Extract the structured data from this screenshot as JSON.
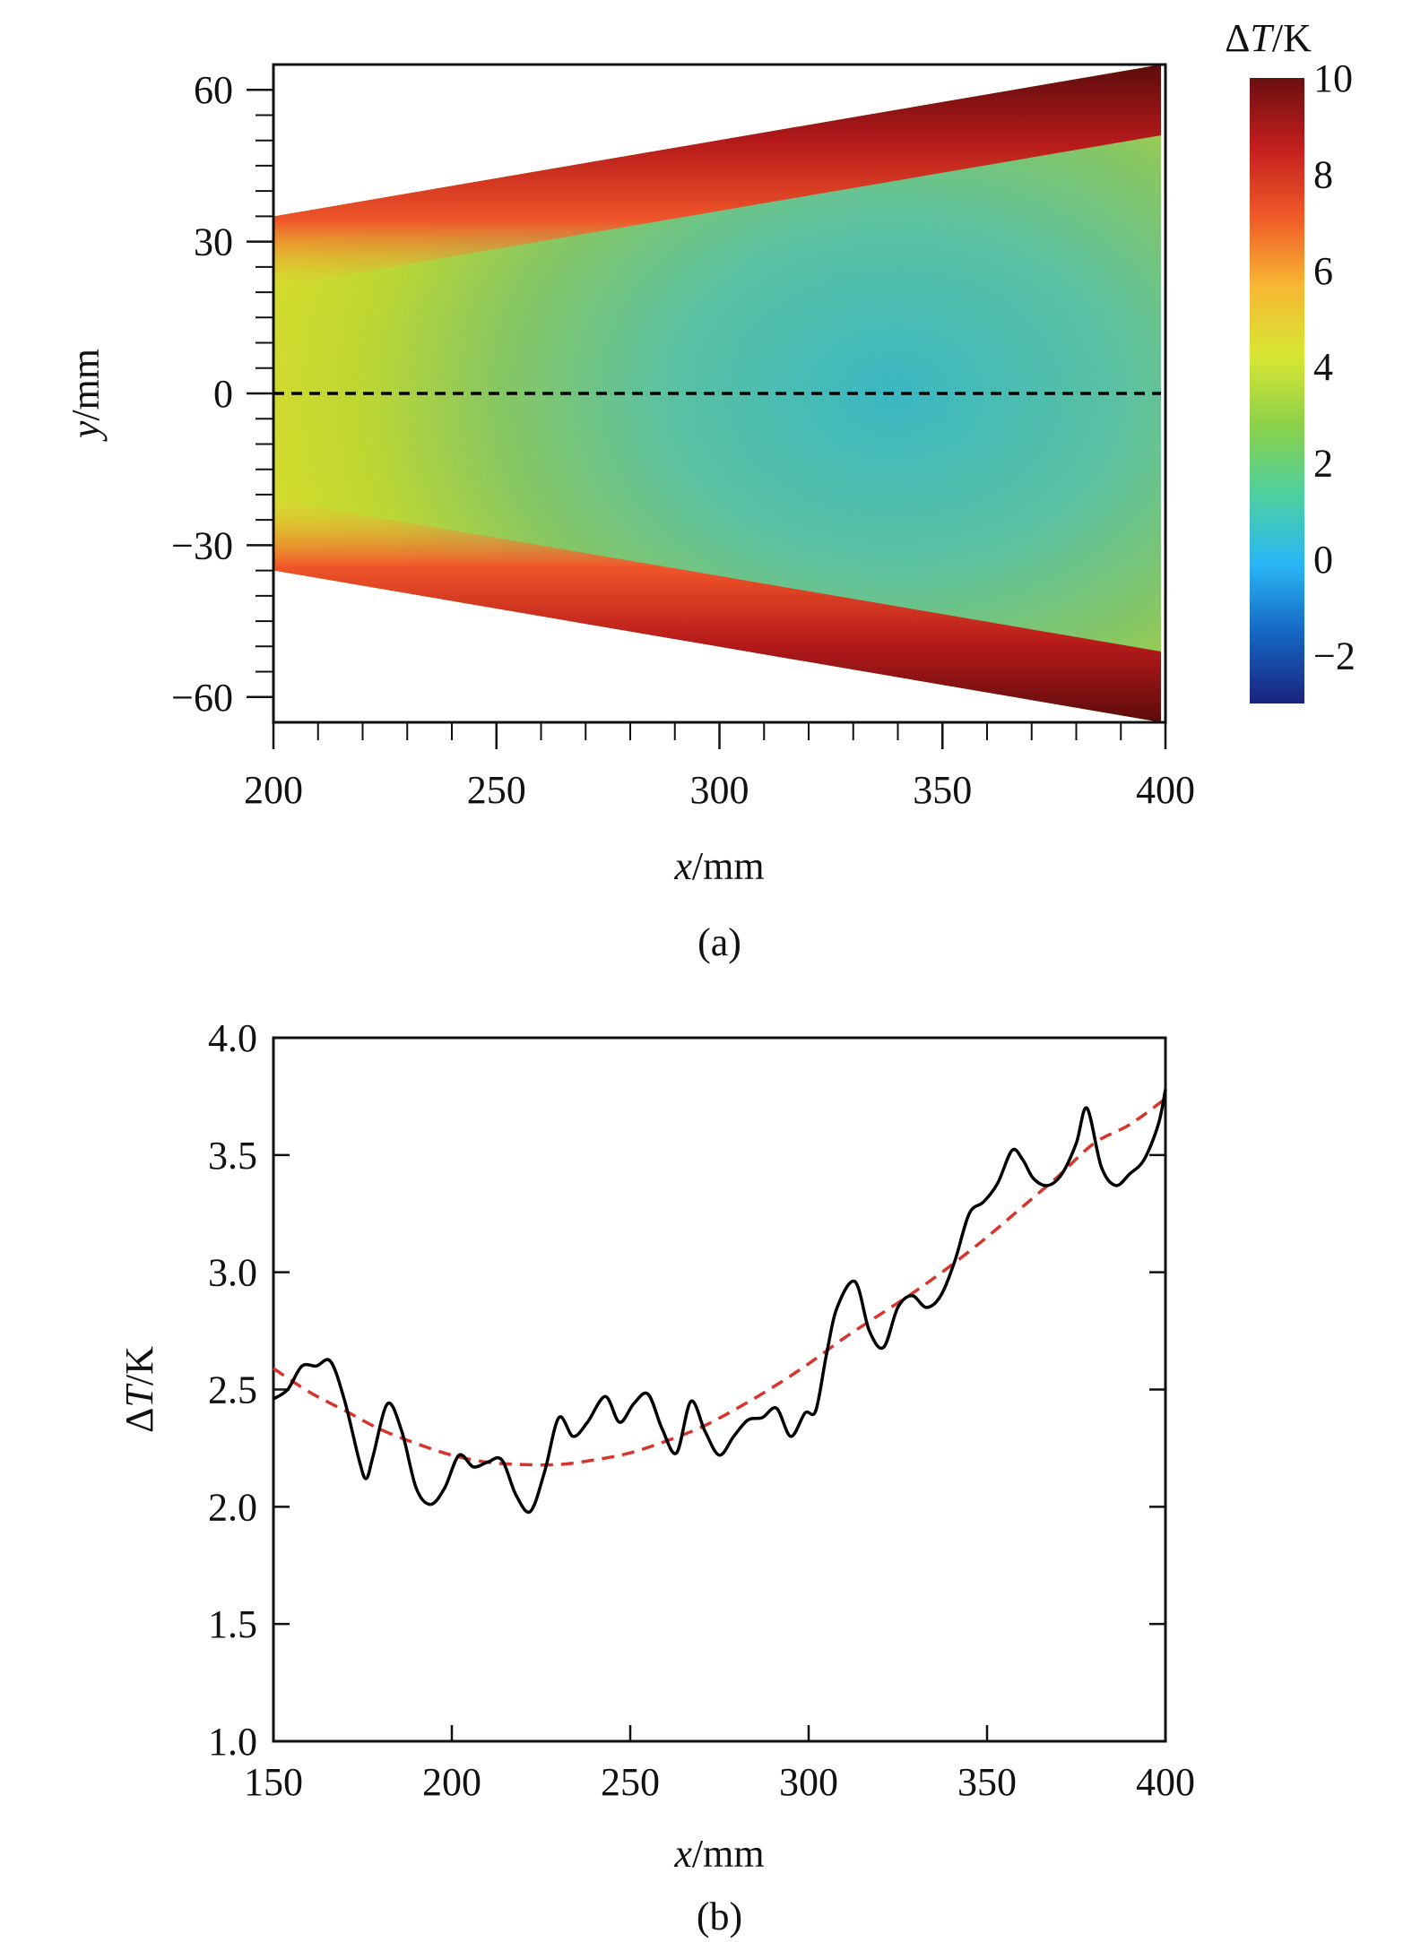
{
  "chart_data": [
    {
      "type": "heatmap",
      "panel_label": "(a)",
      "xlabel": {
        "var": "x",
        "unit": "/mm"
      },
      "ylabel": {
        "var": "y",
        "unit": "/mm"
      },
      "xlim": [
        200,
        400
      ],
      "ylim": [
        -65,
        65
      ],
      "x_ticks": [
        200,
        250,
        300,
        350,
        400
      ],
      "y_ticks": [
        60,
        30,
        0,
        -30,
        -60
      ],
      "y_tick_labels": [
        "60",
        "30",
        "0",
        "−30",
        "−60"
      ],
      "colorbar": {
        "label_prefix": "Δ",
        "label_var": "T",
        "label_unit": "/K",
        "range": [
          -3,
          10
        ],
        "ticks": [
          10,
          8,
          6,
          4,
          2,
          0,
          -2
        ],
        "tick_labels": [
          "10",
          "8",
          "6",
          "4",
          "2",
          "0",
          "−2"
        ],
        "colors": [
          "#1a237e",
          "#1565c0",
          "#29b6f6",
          "#4dd0a0",
          "#8bd14a",
          "#d8e633",
          "#f7b733",
          "#f05a28",
          "#c41e1e",
          "#6b0f0f"
        ]
      },
      "region": {
        "shape": "wedge",
        "half_width_at_x": [
          [
            200,
            35
          ],
          [
            400,
            65
          ]
        ]
      },
      "centerline": {
        "y": 0,
        "style": "dashed",
        "color": "#000000"
      },
      "field_description_colors": {
        "edge": "#8b0f0f",
        "edge_inner": "#e8402a",
        "outer": "#c8e030",
        "mid": "#78c878",
        "core": "#40bcd0"
      }
    },
    {
      "type": "line",
      "panel_label": "(b)",
      "xlabel": {
        "var": "x",
        "unit": "/mm"
      },
      "ylabel": {
        "prefix": "Δ",
        "var": "T",
        "unit": "/K"
      },
      "xlim": [
        150,
        400
      ],
      "ylim": [
        1.0,
        4.0
      ],
      "x_ticks": [
        150,
        200,
        250,
        300,
        350,
        400
      ],
      "y_ticks": [
        1.0,
        1.5,
        2.0,
        2.5,
        3.0,
        3.5,
        4.0
      ],
      "y_tick_labels": [
        "1.0",
        "1.5",
        "2.0",
        "2.5",
        "3.0",
        "3.5",
        "4.0"
      ],
      "series": [
        {
          "style": "solid",
          "color": "#000000",
          "x": [
            150,
            154,
            158,
            162,
            166,
            170,
            174,
            176,
            178,
            182,
            186,
            190,
            194,
            198,
            202,
            206,
            210,
            214,
            218,
            222,
            226,
            230,
            234,
            238,
            243,
            247,
            251,
            255,
            259,
            263,
            267,
            271,
            275,
            279,
            283,
            287,
            291,
            295,
            299,
            302,
            305,
            308,
            313,
            317,
            321,
            325,
            329,
            333,
            337,
            341,
            345,
            349,
            353,
            357,
            360,
            363,
            367,
            371,
            375,
            378,
            382,
            386,
            390,
            394,
            398,
            400
          ],
          "y": [
            2.46,
            2.5,
            2.6,
            2.6,
            2.62,
            2.45,
            2.2,
            2.12,
            2.22,
            2.44,
            2.32,
            2.08,
            2.01,
            2.08,
            2.22,
            2.17,
            2.19,
            2.2,
            2.05,
            1.98,
            2.15,
            2.38,
            2.3,
            2.36,
            2.47,
            2.36,
            2.44,
            2.48,
            2.33,
            2.23,
            2.45,
            2.32,
            2.22,
            2.3,
            2.37,
            2.38,
            2.42,
            2.3,
            2.4,
            2.41,
            2.65,
            2.85,
            2.96,
            2.75,
            2.68,
            2.85,
            2.9,
            2.85,
            2.9,
            3.05,
            3.25,
            3.3,
            3.38,
            3.52,
            3.48,
            3.4,
            3.37,
            3.42,
            3.55,
            3.7,
            3.45,
            3.37,
            3.42,
            3.48,
            3.63,
            3.78
          ]
        },
        {
          "style": "dashed",
          "color": "#d9342b",
          "fit": "quadratic",
          "x": [
            150,
            160,
            170,
            180,
            190,
            200,
            210,
            220,
            230,
            240,
            250,
            260,
            270,
            280,
            290,
            300,
            310,
            320,
            330,
            340,
            350,
            360,
            370,
            380,
            390,
            400
          ],
          "y": [
            2.59,
            2.49,
            2.41,
            2.33,
            2.27,
            2.22,
            2.19,
            2.18,
            2.18,
            2.2,
            2.23,
            2.28,
            2.34,
            2.42,
            2.51,
            2.61,
            2.72,
            2.82,
            2.92,
            3.03,
            3.15,
            3.28,
            3.41,
            3.55,
            3.63,
            3.74
          ]
        }
      ]
    }
  ]
}
